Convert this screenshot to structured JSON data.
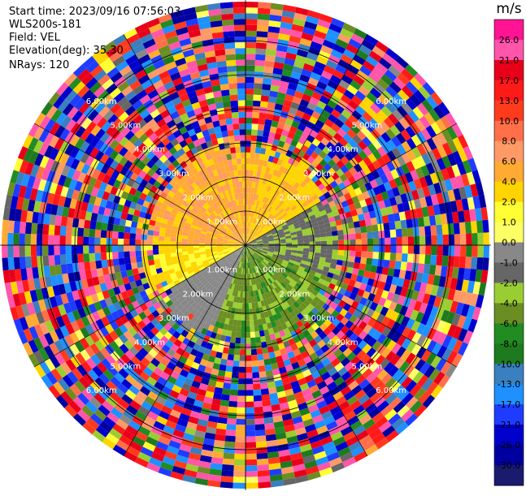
{
  "info": {
    "start_time": "Start time: 2023/09/16 07:56:03",
    "instrument": "WLS200s-181",
    "field": "Field: VEL",
    "elevation": "Elevation(deg): 35.30",
    "nrays": "NRays: 120"
  },
  "colorbar": {
    "unit": "m/s",
    "ticks": [
      "26.0",
      "21.0",
      "17.0",
      "13.0",
      "10.0",
      "8.0",
      "6.0",
      "4.0",
      "2.0",
      "1.0",
      "0.0",
      "-1.0",
      "-2.0",
      "-4.0",
      "-6.0",
      "-8.0",
      "-10.0",
      "-13.0",
      "-17.0",
      "-21.0",
      "-26.0",
      "-30.0"
    ],
    "colors": [
      "#ff1493",
      "#ff55aa",
      "#e8001a",
      "#ff1a1a",
      "#ff3b1e",
      "#ff6f4a",
      "#ff9966",
      "#ffaa33",
      "#ffd400",
      "#ffff33",
      "#ffff66",
      "#888888",
      "#666666",
      "#9acd32",
      "#6b8e23",
      "#228b22",
      "#1e7a1e",
      "#3a7fbf",
      "#1e90ff",
      "#1e3cff",
      "#0000cd",
      "#0000a0",
      "#1a1a6e"
    ]
  },
  "chart_data": {
    "type": "heatmap",
    "title": "",
    "field": "VEL",
    "units": "m/s",
    "nrays": 120,
    "elevation_deg": 35.3,
    "range_rings_km": [
      1.0,
      2.0,
      3.0,
      4.0,
      5.0,
      6.0
    ],
    "ring_label": "km",
    "dominant_patterns": [
      {
        "sector": "north-west to north",
        "range_km": [
          0,
          2.5
        ],
        "velocity_ms": [
          2,
          8
        ]
      },
      {
        "sector": "east to north-east",
        "range_km": [
          0,
          2.5
        ],
        "velocity_ms": [
          -2,
          0
        ]
      },
      {
        "sector": "south to south-east",
        "range_km": [
          0,
          3
        ],
        "velocity_ms": [
          -6,
          -2
        ]
      },
      {
        "sector": "outer annulus",
        "range_km": [
          3.5,
          6.5
        ],
        "velocity_ms": [
          -30,
          26
        ],
        "note": "noise"
      }
    ]
  }
}
